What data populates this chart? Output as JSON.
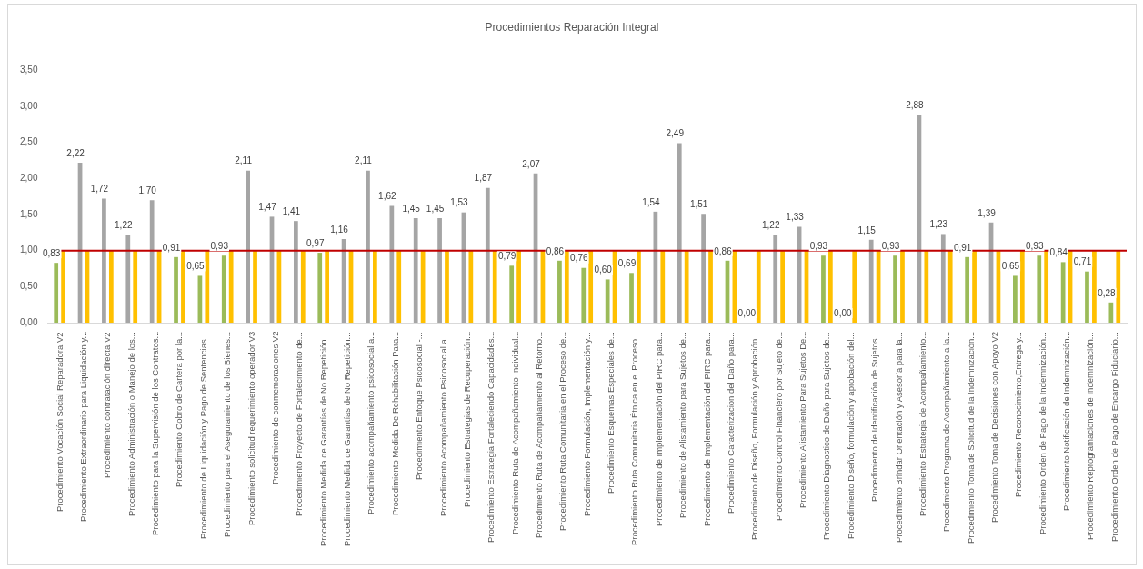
{
  "chart_data": {
    "type": "bar",
    "title": "Procedimientos Reparación Integral",
    "categories": [
      "Procedimiento Vocación Social Reparadora V2",
      "Procedimiento Extraordinario para Liquidación y...",
      "Procedimiento contratación directa V2",
      "Procedimiento Administración o Manejo de los...",
      "Procedimiento para la Supervisión de los Contratos...",
      "Procedimiento Cobro de Cartera por la...",
      "Procedimiento de Liquidación y Pago de Sentencias...",
      "Procedimiento para el Aseguramiento de los Bienes...",
      "Procedimiento solicitud requerimiento operador V3",
      "Procedimiento de conmemoraciones V2",
      "Procedimiento Proyecto de Fortalecimiento de...",
      "Procedimiento Medida de Garantías de No Repetición...",
      "Procedimiento Medida de Garantías de No Repetición...",
      "Procedimiento acompañamiento psicosocial a...",
      "Procedimiento Medida De Rehabilitación Para...",
      "Procedimiento Enfoque Psicosocial -...",
      "Procedimiento Acompañamiento Psicosocial a...",
      "Procedimiento Estrategias de Recuperación...",
      "Procedimiento Estrategia Fortaleciendo Capacidades...",
      "Procedimiento Ruta de Acompañamiento Individual...",
      "Procedimiento Ruta de Acompañamiento al Retorno...",
      "Procedimiento Ruta Comunitaria en el Proceso de...",
      "Procedimiento Formulación, Implementación y...",
      "Procedimiento Esquemas Especiales de...",
      "Procedimiento Ruta Comunitaria Étnica en el Proceso...",
      "Procedimiento de Implementación del PIRC para...",
      "Procedimiento de Alistamiento para Sujetos de...",
      "Procedimiento de Implementación del PIRC para...",
      "Procedimiento Caracterizacion del Daño para...",
      "Procedimiento de Diseño, Formulación y Aprobación...",
      "Procedimiento Control Financiero por Sujeto de...",
      "Procedimiento Alistamiento Para Sujetos De...",
      "Procedimiento Diagnostico de Daño para Sujetos de...",
      "Procedimiento Diseño, formulación y aprobación del...",
      "Procedimiento de Identificación de Sujetos...",
      "Procedimiento Brindar Orientación y Asesoría para la...",
      "Procedimiento Estrategia de Acompañamiento...",
      "Procedimiento Programa de Acompañamiento a la...",
      "Procedimiento Toma de Solicitud de la Indemnización...",
      "Procedimiento Toma de Decisiones con Apoyo V2",
      "Procedimiento Reconocimiento,Entrega y...",
      "Procedimiento Orden de Pago de la Indemnización...",
      "Procedimiento Notificación de Indemnización...",
      "Procedimiento Reprogramaciones de Indemnización...",
      "Procedimiento Orden de Pago de Encargo Fiduciario..."
    ],
    "series": [
      {
        "values": [
          0.83,
          2.22,
          1.72,
          1.22,
          1.7,
          0.91,
          0.65,
          0.93,
          2.11,
          1.47,
          1.41,
          0.97,
          1.16,
          2.11,
          1.62,
          1.45,
          1.45,
          1.53,
          1.87,
          0.79,
          2.07,
          0.86,
          0.76,
          0.6,
          0.69,
          1.54,
          2.49,
          1.51,
          0.86,
          0.0,
          1.22,
          1.33,
          0.93,
          0.0,
          1.15,
          0.93,
          2.88,
          1.23,
          0.91,
          1.39,
          0.65,
          0.93,
          0.84,
          0.71,
          0.28
        ],
        "colors": [
          "#9bbb59",
          "#a5a5a5",
          "#a5a5a5",
          "#a5a5a5",
          "#a5a5a5",
          "#9bbb59",
          "#9bbb59",
          "#9bbb59",
          "#a5a5a5",
          "#a5a5a5",
          "#a5a5a5",
          "#9bbb59",
          "#a5a5a5",
          "#a5a5a5",
          "#a5a5a5",
          "#a5a5a5",
          "#a5a5a5",
          "#a5a5a5",
          "#a5a5a5",
          "#9bbb59",
          "#a5a5a5",
          "#9bbb59",
          "#9bbb59",
          "#9bbb59",
          "#9bbb59",
          "#a5a5a5",
          "#a5a5a5",
          "#a5a5a5",
          "#9bbb59",
          "#9bbb59",
          "#a5a5a5",
          "#a5a5a5",
          "#9bbb59",
          "#9bbb59",
          "#a5a5a5",
          "#9bbb59",
          "#a5a5a5",
          "#a5a5a5",
          "#9bbb59",
          "#a5a5a5",
          "#9bbb59",
          "#9bbb59",
          "#9bbb59",
          "#9bbb59",
          "#9bbb59"
        ],
        "value_labels": [
          "0,83",
          "2,22",
          "1,72",
          "1,22",
          "1,70",
          "0,91",
          "0,65",
          "0,93",
          "2,11",
          "1,47",
          "1,41",
          "0,97",
          "1,16",
          "2,11",
          "1,62",
          "1,45",
          "1,45",
          "1,53",
          "1,87",
          "0,79",
          "2,07",
          "0,86",
          "0,76",
          "0,60",
          "0,69",
          "1,54",
          "2,49",
          "1,51",
          "0,86",
          "0,00",
          "1,22",
          "1,33",
          "0,93",
          "0,00",
          "1,15",
          "0,93",
          "2,88",
          "1,23",
          "0,91",
          "1,39",
          "0,65",
          "0,93",
          "0,84",
          "0,71",
          "0,28"
        ]
      },
      {
        "color": "#ffc000",
        "values": [
          1,
          1,
          1,
          1,
          1,
          1,
          1,
          1,
          1,
          1,
          1,
          1,
          1,
          1,
          1,
          1,
          1,
          1,
          1,
          1,
          1,
          1,
          1,
          1,
          1,
          1,
          1,
          1,
          1,
          1,
          1,
          1,
          1,
          1,
          1,
          1,
          1,
          1,
          1,
          1,
          1,
          1,
          1,
          1,
          1
        ]
      }
    ],
    "ylim": [
      0,
      3.5
    ],
    "yticks": [
      {
        "value": 0,
        "label": "0,00"
      },
      {
        "value": 0.5,
        "label": "0,50"
      },
      {
        "value": 1,
        "label": "1,00"
      },
      {
        "value": 1.5,
        "label": "1,50"
      },
      {
        "value": 2,
        "label": "2,00"
      },
      {
        "value": 2.5,
        "label": "2,50"
      },
      {
        "value": 3,
        "label": "3,00"
      },
      {
        "value": 3.5,
        "label": "3,50"
      }
    ],
    "ref_lines": [
      {
        "axis": "y",
        "value": 1,
        "color": "#c00000"
      }
    ],
    "grid": false,
    "legend": false
  }
}
